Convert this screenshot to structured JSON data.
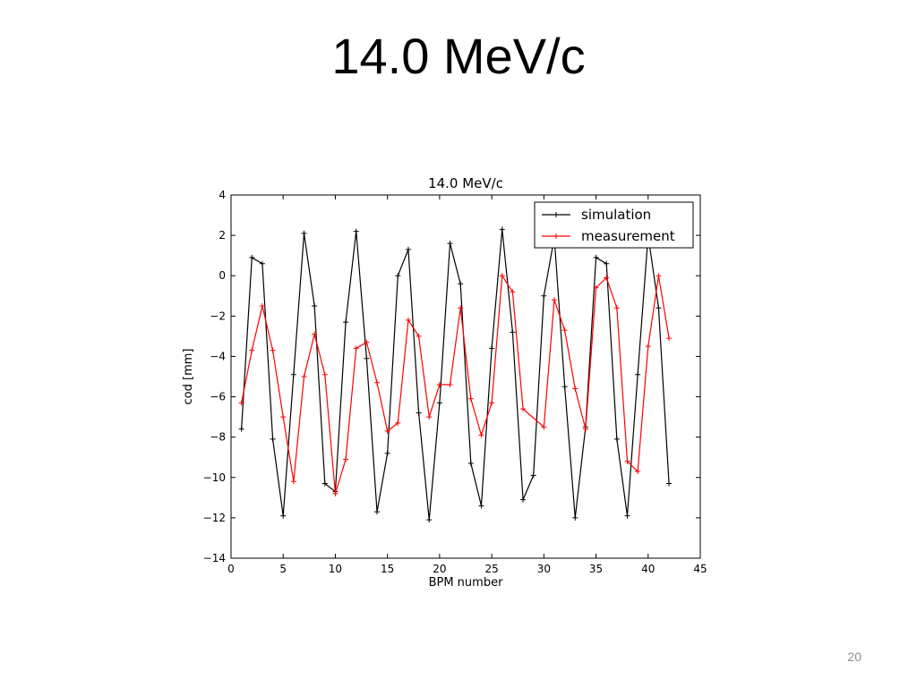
{
  "slide": {
    "title": "14.0 MeV/c",
    "page_number": "20"
  },
  "chart_data": {
    "type": "line",
    "title": "14.0 MeV/c",
    "xlabel": "BPM number",
    "ylabel": "cod [mm]",
    "xlim": [
      0,
      45
    ],
    "ylim": [
      -14,
      4
    ],
    "x_ticks": [
      0,
      5,
      10,
      15,
      20,
      25,
      30,
      35,
      40,
      45
    ],
    "y_ticks": [
      -14,
      -12,
      -10,
      -8,
      -6,
      -4,
      -2,
      0,
      2,
      4
    ],
    "grid": false,
    "legend_position": "top-right",
    "series": [
      {
        "name": "simulation",
        "color": "#000000",
        "marker": "plus",
        "x": [
          1,
          2,
          3,
          4,
          5,
          6,
          7,
          8,
          9,
          10,
          11,
          12,
          13,
          14,
          15,
          16,
          17,
          18,
          19,
          20,
          21,
          22,
          23,
          24,
          25,
          26,
          27,
          28,
          29,
          30,
          31,
          32,
          33,
          34,
          35,
          36,
          37,
          38,
          39,
          40,
          41,
          42
        ],
        "y": [
          -7.6,
          0.9,
          0.6,
          -8.1,
          -11.9,
          -4.9,
          2.1,
          -1.5,
          -10.3,
          -10.7,
          -2.3,
          2.2,
          -4.1,
          -11.7,
          -8.8,
          0.0,
          1.3,
          -6.8,
          -12.1,
          -6.3,
          1.6,
          -0.4,
          -9.3,
          -11.4,
          -3.6,
          2.3,
          -2.8,
          -11.1,
          -9.9,
          -1.0,
          1.9,
          -5.5,
          -12.0,
          -7.5,
          0.9,
          0.6,
          -8.1,
          -11.9,
          -4.9,
          2.0,
          -1.6,
          -10.3
        ]
      },
      {
        "name": "measurement",
        "color": "#ff0000",
        "marker": "plus",
        "x": [
          1,
          2,
          3,
          4,
          5,
          6,
          7,
          8,
          9,
          10,
          11,
          12,
          13,
          14,
          15,
          16,
          17,
          18,
          19,
          20,
          21,
          22,
          23,
          24,
          25,
          26,
          27,
          28,
          30,
          31,
          32,
          33,
          34,
          35,
          36,
          37,
          38,
          39,
          40,
          41,
          42
        ],
        "y": [
          -6.3,
          -3.7,
          -1.5,
          -3.7,
          -7.0,
          -10.2,
          -5.0,
          -2.9,
          -4.9,
          -10.8,
          -9.1,
          -3.6,
          -3.3,
          -5.3,
          -7.7,
          -7.3,
          -2.2,
          -3.0,
          -7.0,
          -5.4,
          -5.4,
          -1.6,
          -6.1,
          -7.9,
          -6.3,
          0.0,
          -0.8,
          -6.6,
          -7.5,
          -1.2,
          -2.7,
          -5.6,
          -7.6,
          -0.6,
          -0.1,
          -1.6,
          -9.2,
          -9.7,
          -3.5,
          0.0,
          -3.1
        ]
      }
    ]
  }
}
